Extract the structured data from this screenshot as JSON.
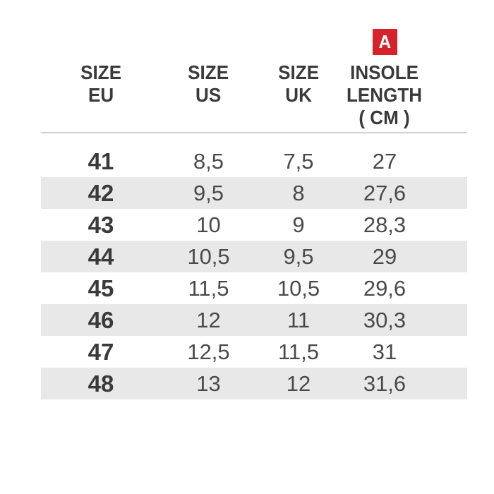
{
  "colors": {
    "accent-red": "#d6232b",
    "stripe": "#e8e8e8",
    "line": "#cfcfcf",
    "text-dark": "#3a3a3a",
    "text-value": "#4a4a4a",
    "badge-text": "#ffffff",
    "background": "#ffffff"
  },
  "badge": {
    "label": "A"
  },
  "table": {
    "headers": {
      "eu": "SIZE\nEU",
      "us": "SIZE\nUS",
      "uk": "SIZE\nUK",
      "insole": "INSOLE\nLENGTH\n( CM )"
    },
    "rows": [
      {
        "eu": "41",
        "us": "8,5",
        "uk": "7,5",
        "insole_cm": "27"
      },
      {
        "eu": "42",
        "us": "9,5",
        "uk": "8",
        "insole_cm": "27,6"
      },
      {
        "eu": "43",
        "us": "10",
        "uk": "9",
        "insole_cm": "28,3"
      },
      {
        "eu": "44",
        "us": "10,5",
        "uk": "9,5",
        "insole_cm": "29"
      },
      {
        "eu": "45",
        "us": "11,5",
        "uk": "10,5",
        "insole_cm": "29,6"
      },
      {
        "eu": "46",
        "us": "12",
        "uk": "11",
        "insole_cm": "30,3"
      },
      {
        "eu": "47",
        "us": "12,5",
        "uk": "11,5",
        "insole_cm": "31"
      },
      {
        "eu": "48",
        "us": "13",
        "uk": "12",
        "insole_cm": "31,6"
      }
    ]
  }
}
